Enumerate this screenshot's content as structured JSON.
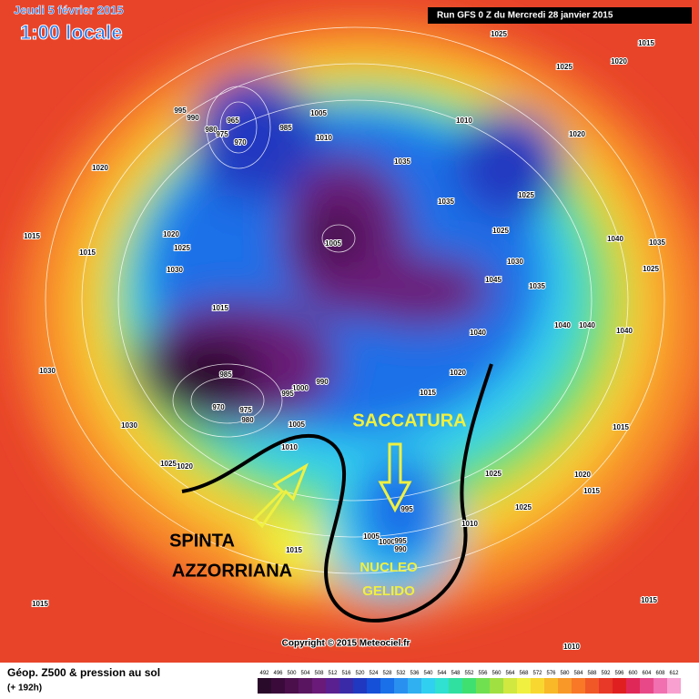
{
  "header": {
    "date": "Jeudi 5 février 2015",
    "time": "1:00 locale",
    "run": "Run GFS 0 Z du Mercredi 28 janvier 2015"
  },
  "annotations": {
    "trough": "SACCATURA",
    "push_1": "SPINTA",
    "push_2": "AZZORRIANA",
    "core_1": "NUCLEO",
    "core_2": "GELIDO"
  },
  "copyright": "Copyright © 2015 Meteociel.fr",
  "footer": {
    "title": "Géop. Z500 & pression au sol",
    "lead": "(+ 192h)"
  },
  "isobars": [
    1025,
    1015,
    1025,
    1020,
    1010,
    1020,
    995,
    990,
    965,
    980,
    975,
    970,
    985,
    1005,
    1010,
    1035,
    1025,
    1035,
    1020,
    1020,
    1025,
    1015,
    1015,
    1030,
    1005,
    1025,
    1030,
    1045,
    1035,
    1040,
    1035,
    1025,
    1040,
    1040,
    1040,
    1040,
    1015,
    1030,
    985,
    990,
    1000,
    995,
    970,
    975,
    980,
    1020,
    1015,
    1030,
    1005,
    1010,
    1015,
    1025,
    1020,
    1025,
    1020,
    1015,
    995,
    1025,
    1010,
    1005,
    1000,
    995,
    990,
    1015,
    1015,
    1015,
    1010
  ],
  "legend": {
    "items": [
      {
        "value": 492,
        "color": "#2a0a2a"
      },
      {
        "value": 496,
        "color": "#3a0a3a"
      },
      {
        "value": 500,
        "color": "#4b0f4b"
      },
      {
        "value": 504,
        "color": "#5a1560"
      },
      {
        "value": 508,
        "color": "#6a1a78"
      },
      {
        "value": 512,
        "color": "#5a2090"
      },
      {
        "value": 516,
        "color": "#3a2aa8"
      },
      {
        "value": 520,
        "color": "#2038c0"
      },
      {
        "value": 524,
        "color": "#1550d8"
      },
      {
        "value": 528,
        "color": "#1a70e8"
      },
      {
        "value": 532,
        "color": "#2a90f0"
      },
      {
        "value": 536,
        "color": "#30b0f0"
      },
      {
        "value": 540,
        "color": "#30d0f0"
      },
      {
        "value": 544,
        "color": "#30e0d0"
      },
      {
        "value": 548,
        "color": "#30e0a0"
      },
      {
        "value": 552,
        "color": "#40e070"
      },
      {
        "value": 556,
        "color": "#70e050"
      },
      {
        "value": 560,
        "color": "#a0e040"
      },
      {
        "value": 564,
        "color": "#d0e840"
      },
      {
        "value": 568,
        "color": "#f0f040"
      },
      {
        "value": 572,
        "color": "#f8d830"
      },
      {
        "value": 576,
        "color": "#f8b828"
      },
      {
        "value": 580,
        "color": "#f89828"
      },
      {
        "value": 584,
        "color": "#f87828"
      },
      {
        "value": 588,
        "color": "#f05828"
      },
      {
        "value": 592,
        "color": "#e83828"
      },
      {
        "value": 596,
        "color": "#e02020"
      },
      {
        "value": 600,
        "color": "#e02858"
      },
      {
        "value": 604,
        "color": "#e84888"
      },
      {
        "value": 608,
        "color": "#f070b0"
      },
      {
        "value": 612,
        "color": "#f8a0d0"
      }
    ]
  }
}
